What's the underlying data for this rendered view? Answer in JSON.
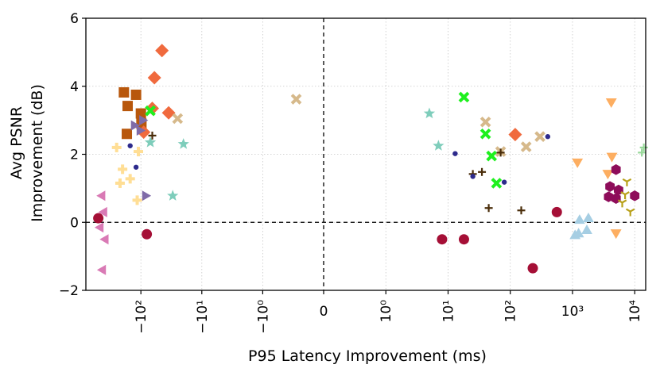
{
  "chart_data": {
    "type": "scatter",
    "title": "",
    "xlabel": "P95 Latency Improvement (ms)",
    "ylabel_lines": [
      "Avg PSNR",
      "Improvement (dB)"
    ],
    "xscale": "symlog",
    "xlim": [
      -800,
      15000
    ],
    "ylim": [
      -2,
      6
    ],
    "grid": true,
    "yticks": [
      -2,
      0,
      2,
      4,
      6
    ],
    "ytick_labels": [
      "−2",
      "0",
      "2",
      "4",
      "6"
    ],
    "xticks": [
      {
        "value": -100,
        "label": "−10²",
        "rotate": true
      },
      {
        "value": -10,
        "label": "−10¹",
        "rotate": true
      },
      {
        "value": -1,
        "label": "−10⁰",
        "rotate": true
      },
      {
        "value": 0,
        "label": "0",
        "rotate": false
      },
      {
        "value": 1,
        "label": "10⁰",
        "rotate": true
      },
      {
        "value": 10,
        "label": "10¹",
        "rotate": true
      },
      {
        "value": 100,
        "label": "10²",
        "rotate": true
      },
      {
        "value": 1000,
        "label": "10³",
        "rotate": false
      },
      {
        "value": 10000,
        "label": "10⁴",
        "rotate": true
      }
    ],
    "series": [
      {
        "name": "pink-left-triangle",
        "marker": "tri-left",
        "color": "#d97ab5",
        "points": [
          [
            -430,
            0.78
          ],
          [
            -400,
            0.3
          ],
          [
            -380,
            -0.5
          ],
          [
            -460,
            -0.15
          ],
          [
            -420,
            -1.4
          ]
        ]
      },
      {
        "name": "crimson-circle",
        "marker": "circle",
        "color": "#a50f36",
        "points": [
          [
            -500,
            0.12
          ],
          [
            -80,
            -0.35
          ],
          [
            8,
            -0.5
          ],
          [
            18,
            -0.5
          ],
          [
            230,
            -1.35
          ],
          [
            560,
            0.3
          ]
        ]
      },
      {
        "name": "orange-square",
        "marker": "square",
        "color": "#b8570c",
        "points": [
          [
            -190,
            3.82
          ],
          [
            -165,
            3.42
          ],
          [
            -120,
            3.75
          ],
          [
            -100,
            3.2
          ],
          [
            -98,
            2.9
          ],
          [
            -170,
            2.6
          ]
        ]
      },
      {
        "name": "coral-diamond",
        "marker": "diamond",
        "color": "#f06a3e",
        "points": [
          [
            -45,
            5.05
          ],
          [
            -60,
            4.25
          ],
          [
            -35,
            3.22
          ],
          [
            -65,
            3.35
          ],
          [
            -90,
            2.65
          ],
          [
            120,
            2.58
          ]
        ]
      },
      {
        "name": "purple-right-triangle",
        "marker": "tri-right",
        "color": "#7f6ba8",
        "points": [
          [
            -130,
            2.85
          ],
          [
            -105,
            2.7
          ],
          [
            -95,
            3.0
          ],
          [
            -85,
            0.78
          ]
        ]
      },
      {
        "name": "tan-x",
        "marker": "x-fat",
        "color": "#d6b98b",
        "points": [
          [
            -25,
            3.05
          ],
          [
            -0.45,
            3.62
          ],
          [
            40,
            2.95
          ],
          [
            70,
            2.08
          ],
          [
            180,
            2.22
          ],
          [
            300,
            2.52
          ]
        ]
      },
      {
        "name": "lime-x",
        "marker": "x-fat",
        "color": "#1ef01e",
        "points": [
          [
            -70,
            3.28
          ],
          [
            18,
            3.68
          ],
          [
            40,
            2.6
          ],
          [
            50,
            1.95
          ],
          [
            60,
            1.15
          ]
        ]
      },
      {
        "name": "teal-star",
        "marker": "star",
        "color": "#7ecdbb",
        "points": [
          [
            -70,
            2.35
          ],
          [
            -20,
            2.3
          ],
          [
            -30,
            0.78
          ],
          [
            5,
            3.2
          ],
          [
            7,
            2.25
          ]
        ]
      },
      {
        "name": "lightyellow-plus",
        "marker": "plus-fat",
        "color": "#ffde95",
        "points": [
          [
            -250,
            2.2
          ],
          [
            -200,
            1.56
          ],
          [
            -220,
            1.15
          ],
          [
            -150,
            1.28
          ],
          [
            -110,
            2.08
          ],
          [
            -115,
            0.65
          ]
        ]
      },
      {
        "name": "brown-plus",
        "marker": "plus-thin",
        "color": "#4a2d0a",
        "points": [
          [
            -65,
            2.55
          ],
          [
            25,
            1.42
          ],
          [
            35,
            1.48
          ],
          [
            45,
            0.42
          ],
          [
            70,
            2.05
          ],
          [
            150,
            0.35
          ]
        ]
      },
      {
        "name": "navy-dot",
        "marker": "small-dot",
        "color": "#2d2a8c",
        "points": [
          [
            -150,
            2.25
          ],
          [
            -120,
            1.62
          ],
          [
            13,
            2.02
          ],
          [
            25,
            1.35
          ],
          [
            80,
            1.18
          ],
          [
            400,
            2.52
          ]
        ]
      },
      {
        "name": "orange-down-triangle",
        "marker": "tri-down",
        "color": "#fdae61",
        "points": [
          [
            4200,
            3.55
          ],
          [
            1200,
            1.78
          ],
          [
            4300,
            1.95
          ],
          [
            3700,
            1.45
          ],
          [
            5000,
            -0.3
          ]
        ]
      },
      {
        "name": "lightblue-up-triangle",
        "marker": "tri-up",
        "color": "#a6cee3",
        "points": [
          [
            1100,
            -0.4
          ],
          [
            1300,
            0.05
          ],
          [
            1800,
            0.1
          ],
          [
            1700,
            -0.25
          ],
          [
            1250,
            -0.35
          ]
        ]
      },
      {
        "name": "magenta-hexagon",
        "marker": "hexagon",
        "color": "#8e0c5a",
        "points": [
          [
            5000,
            1.55
          ],
          [
            4000,
            1.05
          ],
          [
            3800,
            0.75
          ],
          [
            5000,
            0.7
          ],
          [
            5500,
            0.95
          ],
          [
            10000,
            0.78
          ]
        ]
      },
      {
        "name": "olive-tri-y",
        "marker": "tri-y",
        "color": "#b8a019",
        "points": [
          [
            7500,
            1.2
          ],
          [
            7000,
            0.82
          ],
          [
            6300,
            0.58
          ],
          [
            8500,
            0.32
          ]
        ]
      },
      {
        "name": "lightgreen-tick",
        "marker": "plus-thin",
        "color": "#98d89a",
        "points": [
          [
            14000,
            2.2
          ],
          [
            13000,
            2.05
          ]
        ]
      }
    ]
  }
}
